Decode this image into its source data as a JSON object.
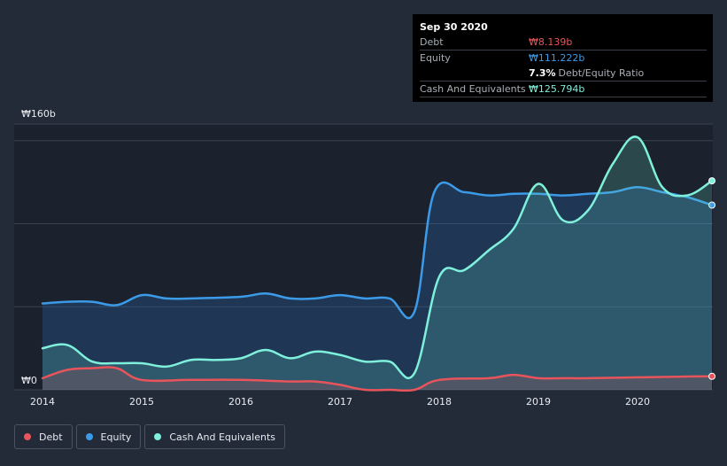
{
  "tooltip": {
    "date": "Sep 30 2020",
    "rows": [
      {
        "label": "Debt",
        "value": "₩8.139b",
        "color": "#e8545b"
      },
      {
        "label": "Equity",
        "value": "₩111.222b",
        "color": "#3b9be8"
      }
    ],
    "ratio_value": "7.3%",
    "ratio_label": "Debt/Equity Ratio",
    "cash": {
      "label": "Cash And Equivalents",
      "value": "₩125.794b",
      "color": "#7ef0dc"
    }
  },
  "legend": [
    {
      "label": "Debt",
      "color": "#e8545b"
    },
    {
      "label": "Equity",
      "color": "#3b9be8"
    },
    {
      "label": "Cash And Equivalents",
      "color": "#7ef0dc"
    }
  ],
  "chart_data": {
    "type": "line",
    "title": "",
    "xlabel": "",
    "ylabel": "",
    "ylim": [
      0,
      160
    ],
    "y_ticks": [
      {
        "value": 160,
        "label": "₩160b"
      },
      {
        "value": 0,
        "label": "₩0"
      }
    ],
    "xlim": [
      2013.75,
      2020.95
    ],
    "x_ticks": [
      {
        "value": 2014,
        "label": "2014"
      },
      {
        "value": 2015,
        "label": "2015"
      },
      {
        "value": 2016,
        "label": "2016"
      },
      {
        "value": 2017,
        "label": "2017"
      },
      {
        "value": 2018,
        "label": "2018"
      },
      {
        "value": 2019,
        "label": "2019"
      },
      {
        "value": 2020,
        "label": "2020"
      }
    ],
    "series": [
      {
        "name": "Debt",
        "color": "#e8545b",
        "x": [
          2014.0,
          2014.25,
          2014.5,
          2014.75,
          2015.0,
          2015.5,
          2016.0,
          2016.5,
          2016.75,
          2017.0,
          2017.25,
          2017.5,
          2017.75,
          2018.0,
          2018.5,
          2018.75,
          2019.0,
          2019.25,
          2019.5,
          2020.0,
          2020.5,
          2020.75
        ],
        "y": [
          7,
          12,
          13,
          13,
          6,
          6,
          6,
          5,
          5,
          3,
          0,
          0,
          0,
          6,
          7,
          9,
          7,
          7,
          7,
          7.5,
          8,
          8.1
        ]
      },
      {
        "name": "Equity",
        "color": "#3b9be8",
        "x": [
          2014.0,
          2014.25,
          2014.5,
          2014.75,
          2015.0,
          2015.25,
          2015.5,
          2016.0,
          2016.25,
          2016.5,
          2016.75,
          2017.0,
          2017.25,
          2017.5,
          2017.75,
          2017.95,
          2018.25,
          2018.5,
          2018.75,
          2019.0,
          2019.25,
          2019.5,
          2019.75,
          2020.0,
          2020.25,
          2020.5,
          2020.75
        ],
        "y": [
          52,
          53,
          53,
          51,
          57,
          55,
          55,
          56,
          58,
          55,
          55,
          57,
          55,
          55,
          47,
          119,
          119,
          117,
          118,
          118,
          117,
          118,
          119,
          122,
          119,
          116,
          111.2
        ]
      },
      {
        "name": "Cash And Equivalents",
        "color": "#7ef0dc",
        "x": [
          2014.0,
          2014.25,
          2014.5,
          2014.75,
          2015.0,
          2015.25,
          2015.5,
          2015.75,
          2016.0,
          2016.25,
          2016.5,
          2016.75,
          2017.0,
          2017.25,
          2017.5,
          2017.75,
          2018.0,
          2018.25,
          2018.5,
          2018.75,
          2019.0,
          2019.25,
          2019.5,
          2019.75,
          2020.0,
          2020.25,
          2020.5,
          2020.75
        ],
        "y": [
          25,
          27,
          17,
          16,
          16,
          14,
          18,
          18,
          19,
          24,
          19,
          23,
          21,
          17,
          17,
          10,
          68,
          72,
          84,
          97,
          124,
          102,
          108,
          136,
          152,
          122,
          117,
          125.8
        ]
      }
    ]
  }
}
